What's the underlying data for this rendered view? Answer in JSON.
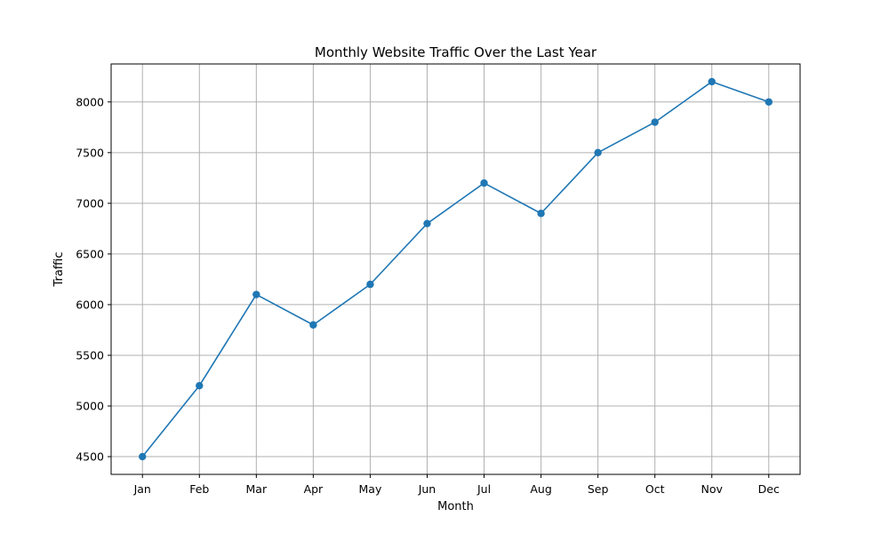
{
  "chart_data": {
    "type": "line",
    "title": "Monthly Website Traffic Over the Last Year",
    "xlabel": "Month",
    "ylabel": "Traffic",
    "categories": [
      "Jan",
      "Feb",
      "Mar",
      "Apr",
      "May",
      "Jun",
      "Jul",
      "Aug",
      "Sep",
      "Oct",
      "Nov",
      "Dec"
    ],
    "series": [
      {
        "values": [
          4500,
          5200,
          6100,
          5800,
          6200,
          6800,
          7200,
          6900,
          7500,
          7800,
          8200,
          8000
        ],
        "color": "#1f77b4",
        "marker": "circle"
      }
    ],
    "ylim": [
      4325,
      8375
    ],
    "yticks": [
      4500,
      5000,
      5500,
      6000,
      6500,
      7000,
      7500,
      8000
    ],
    "grid": true,
    "legend": false
  }
}
